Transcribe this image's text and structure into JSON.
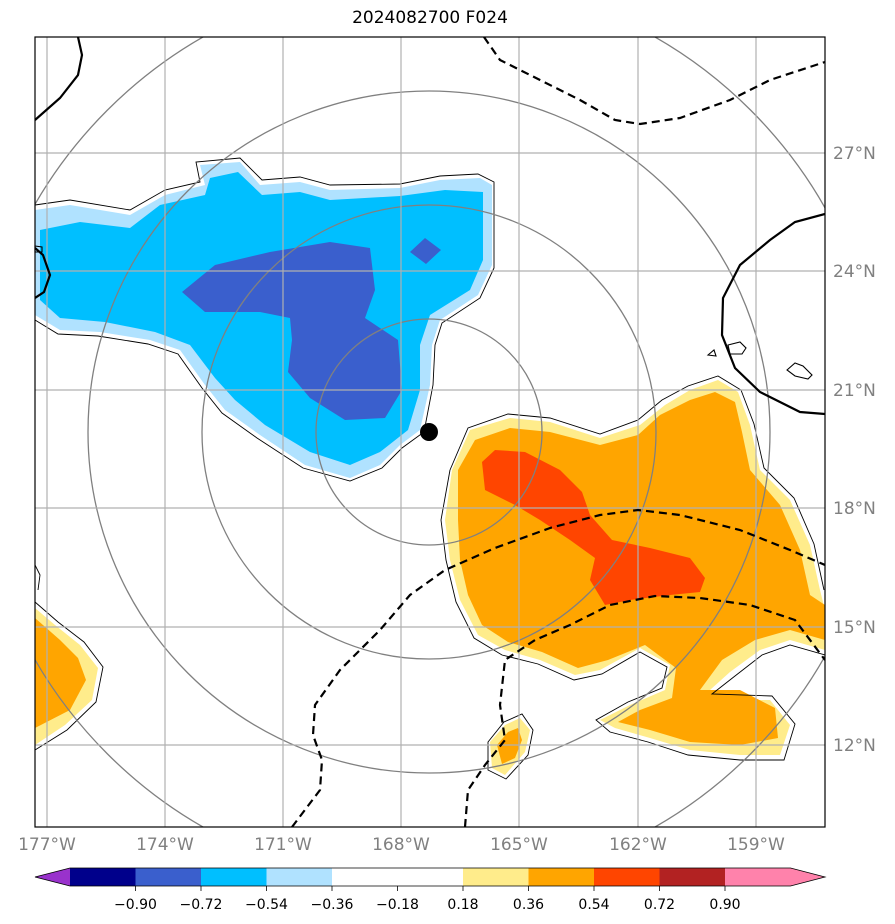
{
  "title": "2024082700 F024",
  "map": {
    "lon_labels": [
      "177°W",
      "174°W",
      "171°W",
      "168°W",
      "165°W",
      "162°W",
      "159°W"
    ],
    "lat_labels": [
      "27°N",
      "24°N",
      "21°N",
      "18°N",
      "15°N",
      "12°N"
    ]
  },
  "colorbar": {
    "colors": [
      "#9932cc",
      "#00008b",
      "#3a5fcd",
      "#00bfff",
      "#b0e2ff",
      "#ffffff",
      "#ffec8b",
      "#ffa500",
      "#ff4500",
      "#b22222",
      "#ff82ab"
    ],
    "labels": [
      "−0.90",
      "−0.72",
      "−0.54",
      "−0.36",
      "−0.18",
      "0.18",
      "0.36",
      "0.54",
      "0.72",
      "0.90"
    ],
    "extend": "both"
  },
  "fill_colors": {
    "light_blue": "#b0e2ff",
    "sky_blue": "#00bfff",
    "royal_blue": "#3a5fcd",
    "light_yellow": "#ffec8b",
    "orange": "#ffa500",
    "red_orange": "#ff4500"
  },
  "marker": {
    "shape": "filled-circle",
    "color": "#000000"
  }
}
